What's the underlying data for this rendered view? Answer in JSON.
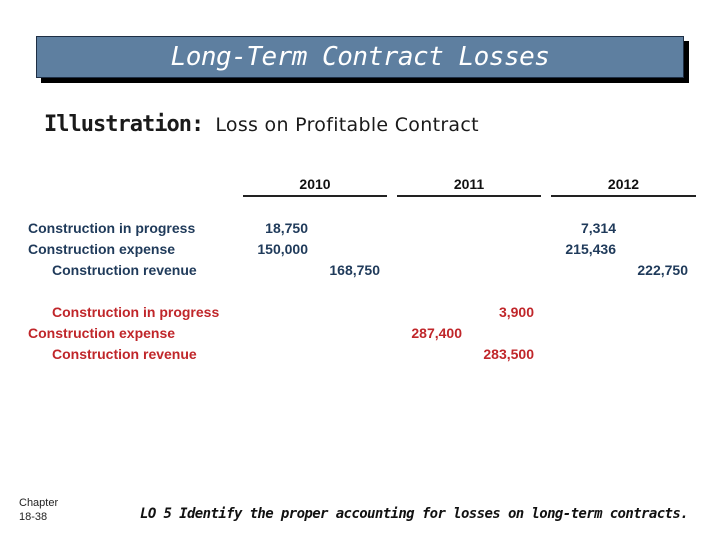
{
  "title": "Long-Term Contract Losses",
  "illustration": {
    "label": "Illustration:",
    "text": "Loss on Profitable Contract"
  },
  "years": [
    "2010",
    "2011",
    "2012"
  ],
  "rows": [
    {
      "label": "Construction in progress",
      "values": [
        "18,750",
        "",
        "",
        "",
        "7,314",
        ""
      ]
    },
    {
      "label": "Construction expense",
      "values": [
        "150,000",
        "",
        "",
        "",
        "215,436",
        ""
      ]
    },
    {
      "label": "Construction revenue",
      "values": [
        "",
        "168,750",
        "",
        "",
        "",
        "222,750"
      ]
    },
    {
      "label": "Construction in progress",
      "values": [
        "",
        "",
        "",
        "3,900",
        "",
        ""
      ]
    },
    {
      "label": "Construction expense",
      "values": [
        "",
        "",
        "287,400",
        "",
        "",
        ""
      ]
    },
    {
      "label": "Construction revenue",
      "values": [
        "",
        "",
        "",
        "283,500",
        "",
        ""
      ]
    }
  ],
  "footer": {
    "chapter": "Chapter",
    "page": "18-38",
    "lo": "LO 5 Identify the proper accounting for losses on long-term contracts."
  },
  "colors": {
    "title_bg": "#5e7fa0",
    "label": "#1f3a5a",
    "loss": "#c0262a"
  }
}
